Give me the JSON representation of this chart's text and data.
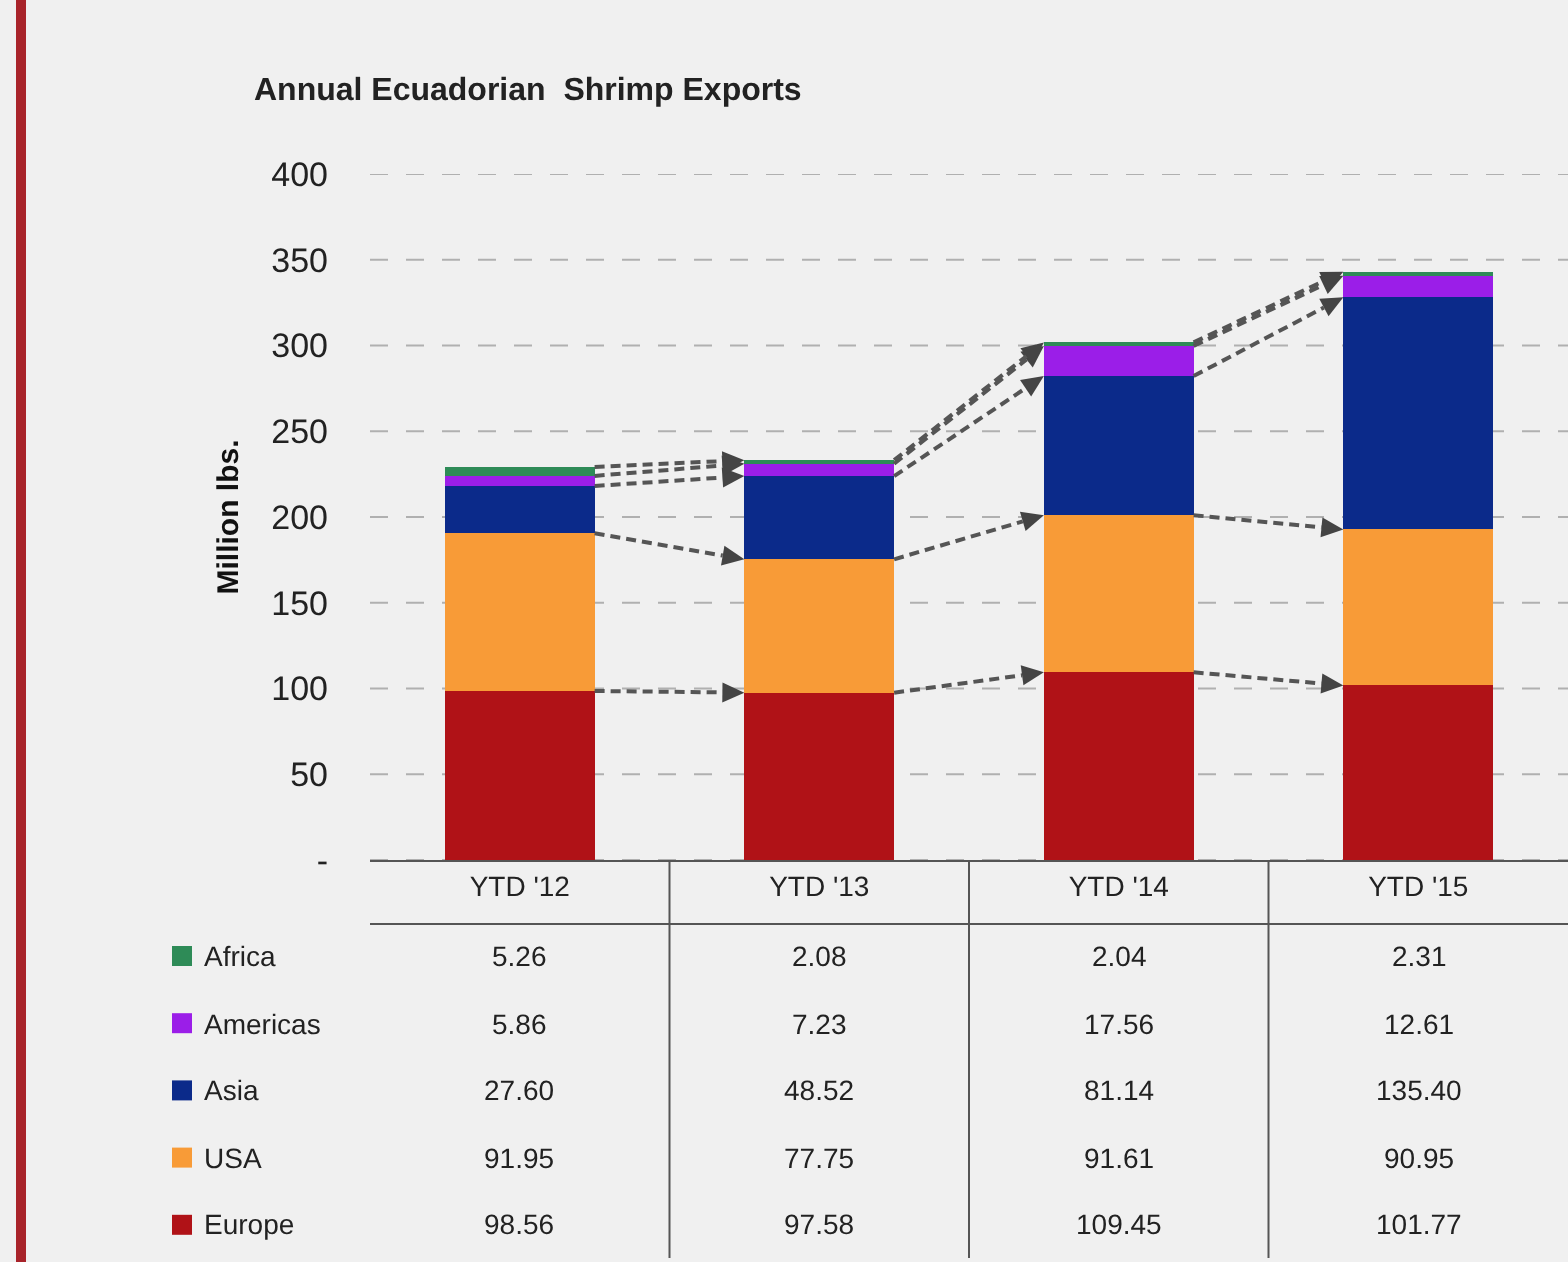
{
  "chart_data": {
    "type": "bar",
    "title": "Annual Ecuadorian  Shrimp Exports",
    "ylabel": "Million lbs.",
    "stacked": true,
    "categories": [
      "YTD '12",
      "YTD '13",
      "YTD '14",
      "YTD '15"
    ],
    "ylim": [
      0,
      400
    ],
    "yticks": [
      {
        "value": 0,
        "label": "-"
      },
      50,
      100,
      150,
      200,
      250,
      300,
      350,
      400
    ],
    "grid": "y",
    "legend": "bottom left",
    "series": [
      {
        "name": "Europe",
        "color": "#b01217",
        "values": [
          98.56,
          97.58,
          109.45,
          101.77
        ],
        "value_labels": [
          "98.56",
          "97.58",
          "109.45",
          "101.77"
        ]
      },
      {
        "name": "USA",
        "color": "#f89b37",
        "values": [
          91.95,
          77.75,
          91.61,
          90.95
        ],
        "value_labels": [
          "91.95",
          "77.75",
          "91.61",
          "90.95"
        ]
      },
      {
        "name": "Asia",
        "color": "#0b2a8a",
        "values": [
          27.6,
          48.52,
          81.14,
          135.4
        ],
        "value_labels": [
          "27.60",
          "48.52",
          "81.14",
          "135.40"
        ]
      },
      {
        "name": "Americas",
        "color": "#9b1ee8",
        "values": [
          5.86,
          7.23,
          17.56,
          12.61
        ],
        "value_labels": [
          "5.86",
          "7.23",
          "17.56",
          "12.61"
        ]
      },
      {
        "name": "Africa",
        "color": "#2e8b57",
        "values": [
          5.26,
          2.08,
          2.04,
          2.31
        ],
        "value_labels": [
          "5.26",
          "2.08",
          "2.04",
          "2.31"
        ]
      }
    ]
  }
}
